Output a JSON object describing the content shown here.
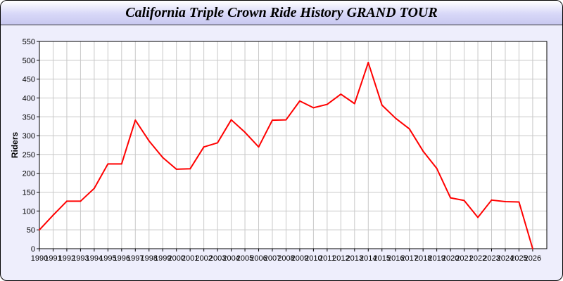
{
  "chart_data": {
    "type": "line",
    "title": "California Triple Crown Ride History GRAND TOUR",
    "xlabel": "",
    "ylabel": "Riders",
    "ylim": [
      0,
      550
    ],
    "yticks": [
      0,
      50,
      100,
      150,
      200,
      250,
      300,
      350,
      400,
      450,
      500,
      550
    ],
    "grid": true,
    "line_color": "#ff0000",
    "x": [
      1990,
      1991,
      1992,
      1993,
      1994,
      1995,
      1996,
      1997,
      1998,
      1999,
      2000,
      2001,
      2002,
      2003,
      2004,
      2005,
      2006,
      2007,
      2008,
      2009,
      2010,
      2011,
      2012,
      2013,
      2014,
      2015,
      2016,
      2017,
      2018,
      2019,
      2020,
      2021,
      2022,
      2023,
      2024,
      2025,
      2026
    ],
    "series": [
      {
        "values": [
          50,
          89,
          126,
          126,
          160,
          225,
          225,
          341,
          286,
          242,
          211,
          212,
          270,
          281,
          342,
          309,
          270,
          341,
          342,
          392,
          374,
          383,
          410,
          385,
          494,
          381,
          346,
          318,
          259,
          213,
          135,
          128,
          83,
          129,
          125,
          124,
          0
        ]
      }
    ]
  }
}
